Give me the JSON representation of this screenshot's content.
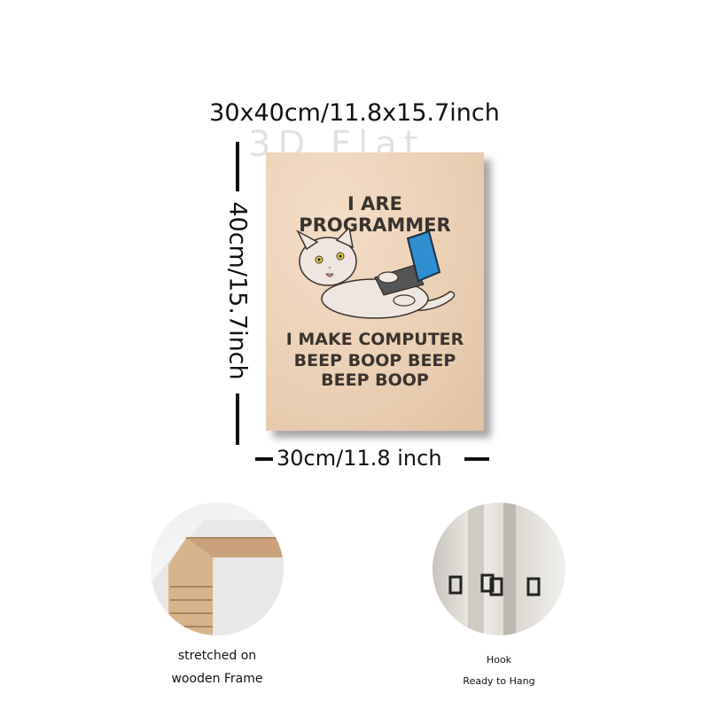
{
  "dimensions": {
    "top": "30x40cm/11.8x15.7inch",
    "side": "40cm/15.7inch",
    "bottom": "30cm/11.8 inch"
  },
  "watermark": "3D Flat",
  "poster": {
    "line1": "I ARE",
    "line2": "PROGRAMMER",
    "line3": "I MAKE COMPUTER",
    "line4": "BEEP BOOP BEEP",
    "line5": "BEEP BOOP",
    "background_color": "#ecd0b4",
    "text_color": "#3a332d",
    "laptop_color": "#2f8fd0"
  },
  "details": [
    {
      "icon": "wooden-frame-corner-icon",
      "caption_line1": "stretched on",
      "caption_line2": "wooden Frame"
    },
    {
      "icon": "hook-icon",
      "caption_line1": "Hook",
      "caption_line2": "Ready to Hang"
    }
  ]
}
